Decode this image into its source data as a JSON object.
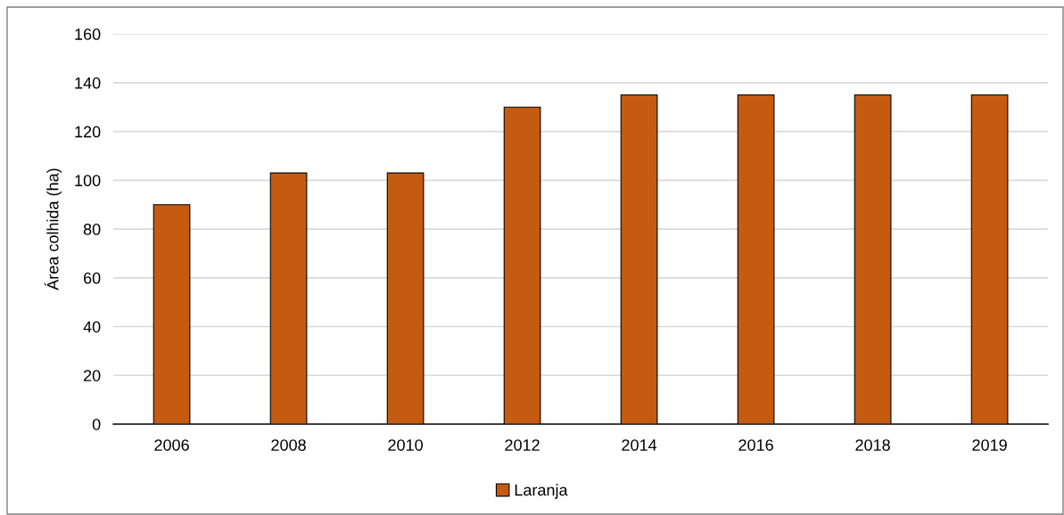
{
  "chart_data": {
    "type": "bar",
    "ylabel": "Área colhida (ha)",
    "categories": [
      "2006",
      "2008",
      "2010",
      "2012",
      "2014",
      "2016",
      "2018",
      "2019"
    ],
    "series": [
      {
        "name": "Laranja",
        "color": "#c55a11",
        "values": [
          90,
          103,
          103,
          130,
          135,
          135,
          135,
          135
        ]
      }
    ],
    "ylim": [
      0,
      160
    ],
    "yticks": [
      0,
      20,
      40,
      60,
      80,
      100,
      120,
      140,
      160
    ],
    "grid": "y",
    "legend": "bottom"
  }
}
